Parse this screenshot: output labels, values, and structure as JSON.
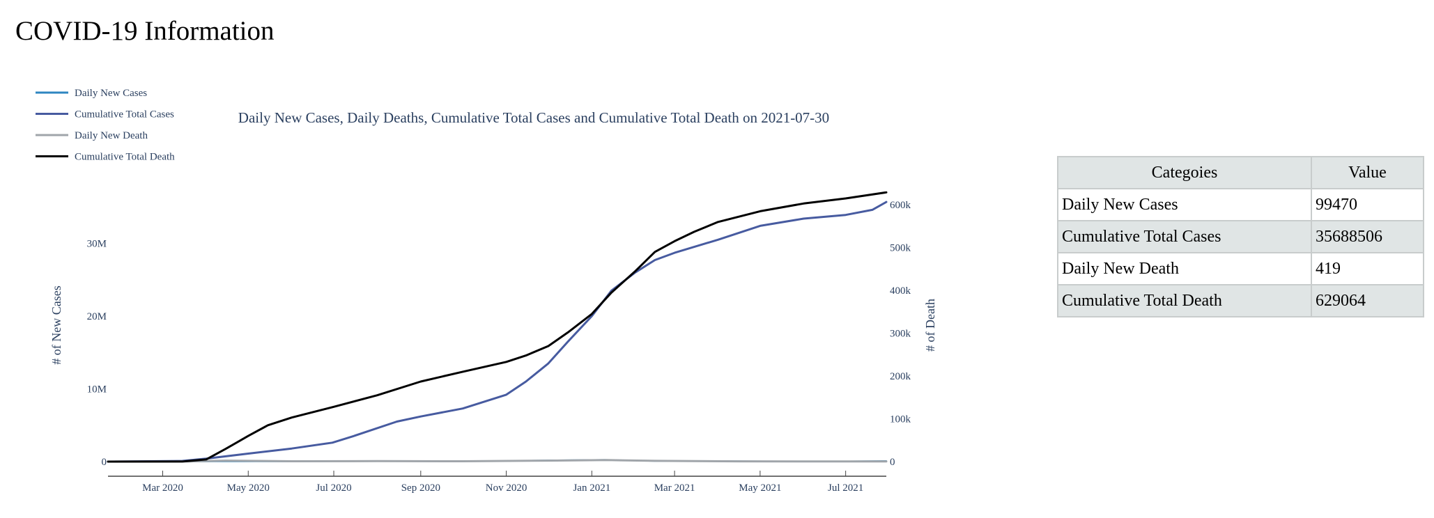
{
  "page": {
    "title": "COVID-19 Information"
  },
  "colors": {
    "daily_cases": "#2e86c1",
    "total_cases": "#475ba0",
    "daily_death": "#a0a5aa",
    "total_death": "#000000",
    "text": "#2a3f5f"
  },
  "table": {
    "headers": [
      "Categoies",
      "Value"
    ],
    "rows": [
      [
        "Daily New Cases",
        "99470"
      ],
      [
        "Cumulative Total Cases",
        "35688506"
      ],
      [
        "Daily New Death",
        "419"
      ],
      [
        "Cumulative Total Death",
        "629064"
      ]
    ]
  },
  "chart_data": {
    "type": "line",
    "title": "Daily New Cases, Daily Deaths, Cumulative Total Cases and Cumulative Total Death on 2021-07-30",
    "ylabel": "# of New Cases",
    "y2label": "# of Death",
    "legend_position": "top-left",
    "grid": false,
    "xlim": [
      "2020-01-22",
      "2021-07-30"
    ],
    "ylim": [
      0,
      40000000
    ],
    "y2lim": [
      0,
      680000
    ],
    "x_ticks": [
      {
        "value": "2020-03-01",
        "label": "Mar 2020"
      },
      {
        "value": "2020-05-01",
        "label": "May 2020"
      },
      {
        "value": "2020-07-01",
        "label": "Jul 2020"
      },
      {
        "value": "2020-09-01",
        "label": "Sep 2020"
      },
      {
        "value": "2020-11-01",
        "label": "Nov 2020"
      },
      {
        "value": "2021-01-01",
        "label": "Jan 2021"
      },
      {
        "value": "2021-03-01",
        "label": "Mar 2021"
      },
      {
        "value": "2021-05-01",
        "label": "May 2021"
      },
      {
        "value": "2021-07-01",
        "label": "Jul 2021"
      }
    ],
    "y_ticks": [
      {
        "value": 0,
        "label": "0"
      },
      {
        "value": 10000000,
        "label": "10M"
      },
      {
        "value": 20000000,
        "label": "20M"
      },
      {
        "value": 30000000,
        "label": "30M"
      }
    ],
    "y2_ticks": [
      {
        "value": 0,
        "label": "0"
      },
      {
        "value": 100000,
        "label": "100k"
      },
      {
        "value": 200000,
        "label": "200k"
      },
      {
        "value": 300000,
        "label": "300k"
      },
      {
        "value": 400000,
        "label": "400k"
      },
      {
        "value": 500000,
        "label": "500k"
      },
      {
        "value": 600000,
        "label": "600k"
      }
    ],
    "series": [
      {
        "name": "Daily New Cases",
        "axis": "y",
        "color": "#2e86c1",
        "points": [
          [
            "2020-01-22",
            0
          ],
          [
            "2020-03-15",
            3000
          ],
          [
            "2020-04-10",
            32000
          ],
          [
            "2020-06-01",
            22000
          ],
          [
            "2020-07-20",
            67000
          ],
          [
            "2020-09-10",
            38000
          ],
          [
            "2020-11-01",
            90000
          ],
          [
            "2020-12-01",
            180000
          ],
          [
            "2021-01-10",
            250000
          ],
          [
            "2021-02-15",
            80000
          ],
          [
            "2021-04-10",
            70000
          ],
          [
            "2021-06-15",
            12000
          ],
          [
            "2021-07-30",
            99470
          ]
        ]
      },
      {
        "name": "Cumulative Total Cases",
        "axis": "y",
        "color": "#475ba0",
        "points": [
          [
            "2020-01-22",
            0
          ],
          [
            "2020-03-15",
            100000
          ],
          [
            "2020-04-01",
            400000
          ],
          [
            "2020-05-01",
            1100000
          ],
          [
            "2020-06-01",
            1800000
          ],
          [
            "2020-06-30",
            2600000
          ],
          [
            "2020-07-15",
            3500000
          ],
          [
            "2020-08-15",
            5500000
          ],
          [
            "2020-09-01",
            6200000
          ],
          [
            "2020-10-01",
            7300000
          ],
          [
            "2020-11-01",
            9200000
          ],
          [
            "2020-11-15",
            11000000
          ],
          [
            "2020-12-01",
            13500000
          ],
          [
            "2020-12-15",
            16500000
          ],
          [
            "2021-01-01",
            20000000
          ],
          [
            "2021-01-15",
            23500000
          ],
          [
            "2021-02-01",
            26000000
          ],
          [
            "2021-02-15",
            27700000
          ],
          [
            "2021-03-01",
            28700000
          ],
          [
            "2021-04-01",
            30500000
          ],
          [
            "2021-05-01",
            32400000
          ],
          [
            "2021-06-01",
            33400000
          ],
          [
            "2021-07-01",
            33900000
          ],
          [
            "2021-07-20",
            34600000
          ],
          [
            "2021-07-30",
            35688506
          ]
        ]
      },
      {
        "name": "Daily New Death",
        "axis": "y2",
        "color": "#a0a5aa",
        "points": [
          [
            "2020-01-22",
            0
          ],
          [
            "2020-03-20",
            400
          ],
          [
            "2020-04-15",
            2200
          ],
          [
            "2020-06-01",
            800
          ],
          [
            "2020-08-01",
            1100
          ],
          [
            "2020-10-01",
            750
          ],
          [
            "2020-12-01",
            2200
          ],
          [
            "2021-01-12",
            3500
          ],
          [
            "2021-02-15",
            1800
          ],
          [
            "2021-04-15",
            700
          ],
          [
            "2021-06-15",
            300
          ],
          [
            "2021-07-30",
            419
          ]
        ]
      },
      {
        "name": "Cumulative Total Death",
        "axis": "y2",
        "color": "#000000",
        "points": [
          [
            "2020-01-22",
            0
          ],
          [
            "2020-03-15",
            100
          ],
          [
            "2020-04-01",
            5000
          ],
          [
            "2020-04-15",
            30000
          ],
          [
            "2020-05-01",
            60000
          ],
          [
            "2020-05-15",
            85000
          ],
          [
            "2020-06-01",
            103000
          ],
          [
            "2020-07-01",
            128000
          ],
          [
            "2020-08-01",
            155000
          ],
          [
            "2020-09-01",
            187000
          ],
          [
            "2020-10-01",
            210000
          ],
          [
            "2020-11-01",
            233000
          ],
          [
            "2020-11-15",
            248000
          ],
          [
            "2020-12-01",
            270000
          ],
          [
            "2020-12-15",
            302000
          ],
          [
            "2021-01-01",
            345000
          ],
          [
            "2021-01-15",
            395000
          ],
          [
            "2021-02-01",
            445000
          ],
          [
            "2021-02-15",
            490000
          ],
          [
            "2021-03-01",
            515000
          ],
          [
            "2021-03-15",
            537000
          ],
          [
            "2021-04-01",
            560000
          ],
          [
            "2021-05-01",
            585000
          ],
          [
            "2021-06-01",
            603000
          ],
          [
            "2021-07-01",
            615000
          ],
          [
            "2021-07-30",
            629064
          ]
        ]
      }
    ]
  }
}
